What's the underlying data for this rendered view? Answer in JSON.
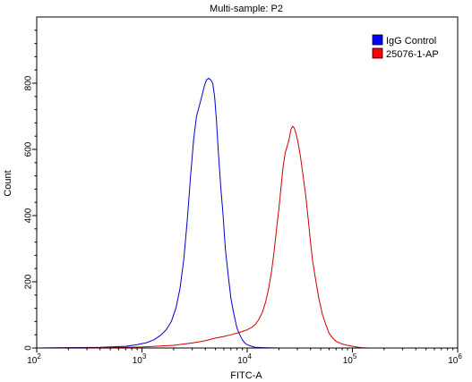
{
  "chart_data": {
    "type": "line",
    "title": "Multi-sample: P2",
    "xlabel": "FITC-A",
    "ylabel": "Count",
    "x_scale": "log",
    "xlim": [
      100,
      1000000
    ],
    "ylim": [
      0,
      1000
    ],
    "x_ticks": [
      {
        "value": 100,
        "base": "10",
        "exp": "2"
      },
      {
        "value": 1000,
        "base": "10",
        "exp": "3"
      },
      {
        "value": 10000,
        "base": "10",
        "exp": "4"
      },
      {
        "value": 100000,
        "base": "10",
        "exp": "5"
      },
      {
        "value": 1000000,
        "base": "10",
        "exp": "6"
      }
    ],
    "y_ticks": [
      0,
      200,
      400,
      600,
      800
    ],
    "legend_position": "top-right",
    "grid": false,
    "series": [
      {
        "name": "IgG Control",
        "color": "#0000cc",
        "legend_color": "#0000ff",
        "x": [
          100,
          200,
          400,
          700,
          900,
          1100,
          1300,
          1500,
          1700,
          1900,
          2100,
          2300,
          2500,
          2700,
          2900,
          3100,
          3300,
          3500,
          3700,
          3900,
          4100,
          4300,
          4500,
          4700,
          4900,
          5100,
          5300,
          5600,
          5900,
          6200,
          6600,
          7000,
          7500,
          8000,
          8500,
          9000,
          9500,
          10000,
          11000,
          12000,
          14000,
          20000,
          100000,
          1000000
        ],
        "y": [
          0,
          1,
          2,
          5,
          10,
          16,
          25,
          38,
          55,
          80,
          120,
          180,
          270,
          390,
          520,
          630,
          700,
          730,
          760,
          790,
          810,
          815,
          810,
          800,
          760,
          690,
          600,
          490,
          400,
          300,
          220,
          150,
          100,
          60,
          40,
          25,
          15,
          10,
          5,
          2,
          1,
          0,
          0,
          0
        ]
      },
      {
        "name": "25076-1-AP",
        "color": "#cc0000",
        "legend_color": "#ff0000",
        "x": [
          100,
          500,
          1000,
          2000,
          3000,
          4000,
          5000,
          6000,
          7000,
          8000,
          9000,
          10000,
          11000,
          12000,
          13000,
          14000,
          15000,
          16000,
          17000,
          18000,
          19000,
          20000,
          21000,
          22000,
          23000,
          24000,
          25000,
          26000,
          27000,
          28000,
          29000,
          30000,
          32000,
          34000,
          36000,
          38000,
          40000,
          42000,
          45000,
          48000,
          52000,
          56000,
          60000,
          65000,
          70000,
          80000,
          90000,
          100000,
          110000,
          120000,
          140000,
          1000000
        ],
        "y": [
          0,
          1,
          3,
          8,
          15,
          22,
          30,
          35,
          40,
          45,
          50,
          55,
          62,
          72,
          88,
          110,
          140,
          180,
          230,
          290,
          360,
          420,
          490,
          550,
          590,
          610,
          630,
          660,
          670,
          665,
          650,
          630,
          580,
          520,
          460,
          390,
          320,
          260,
          200,
          150,
          100,
          70,
          45,
          30,
          20,
          12,
          8,
          5,
          3,
          1,
          0,
          0
        ]
      }
    ]
  }
}
